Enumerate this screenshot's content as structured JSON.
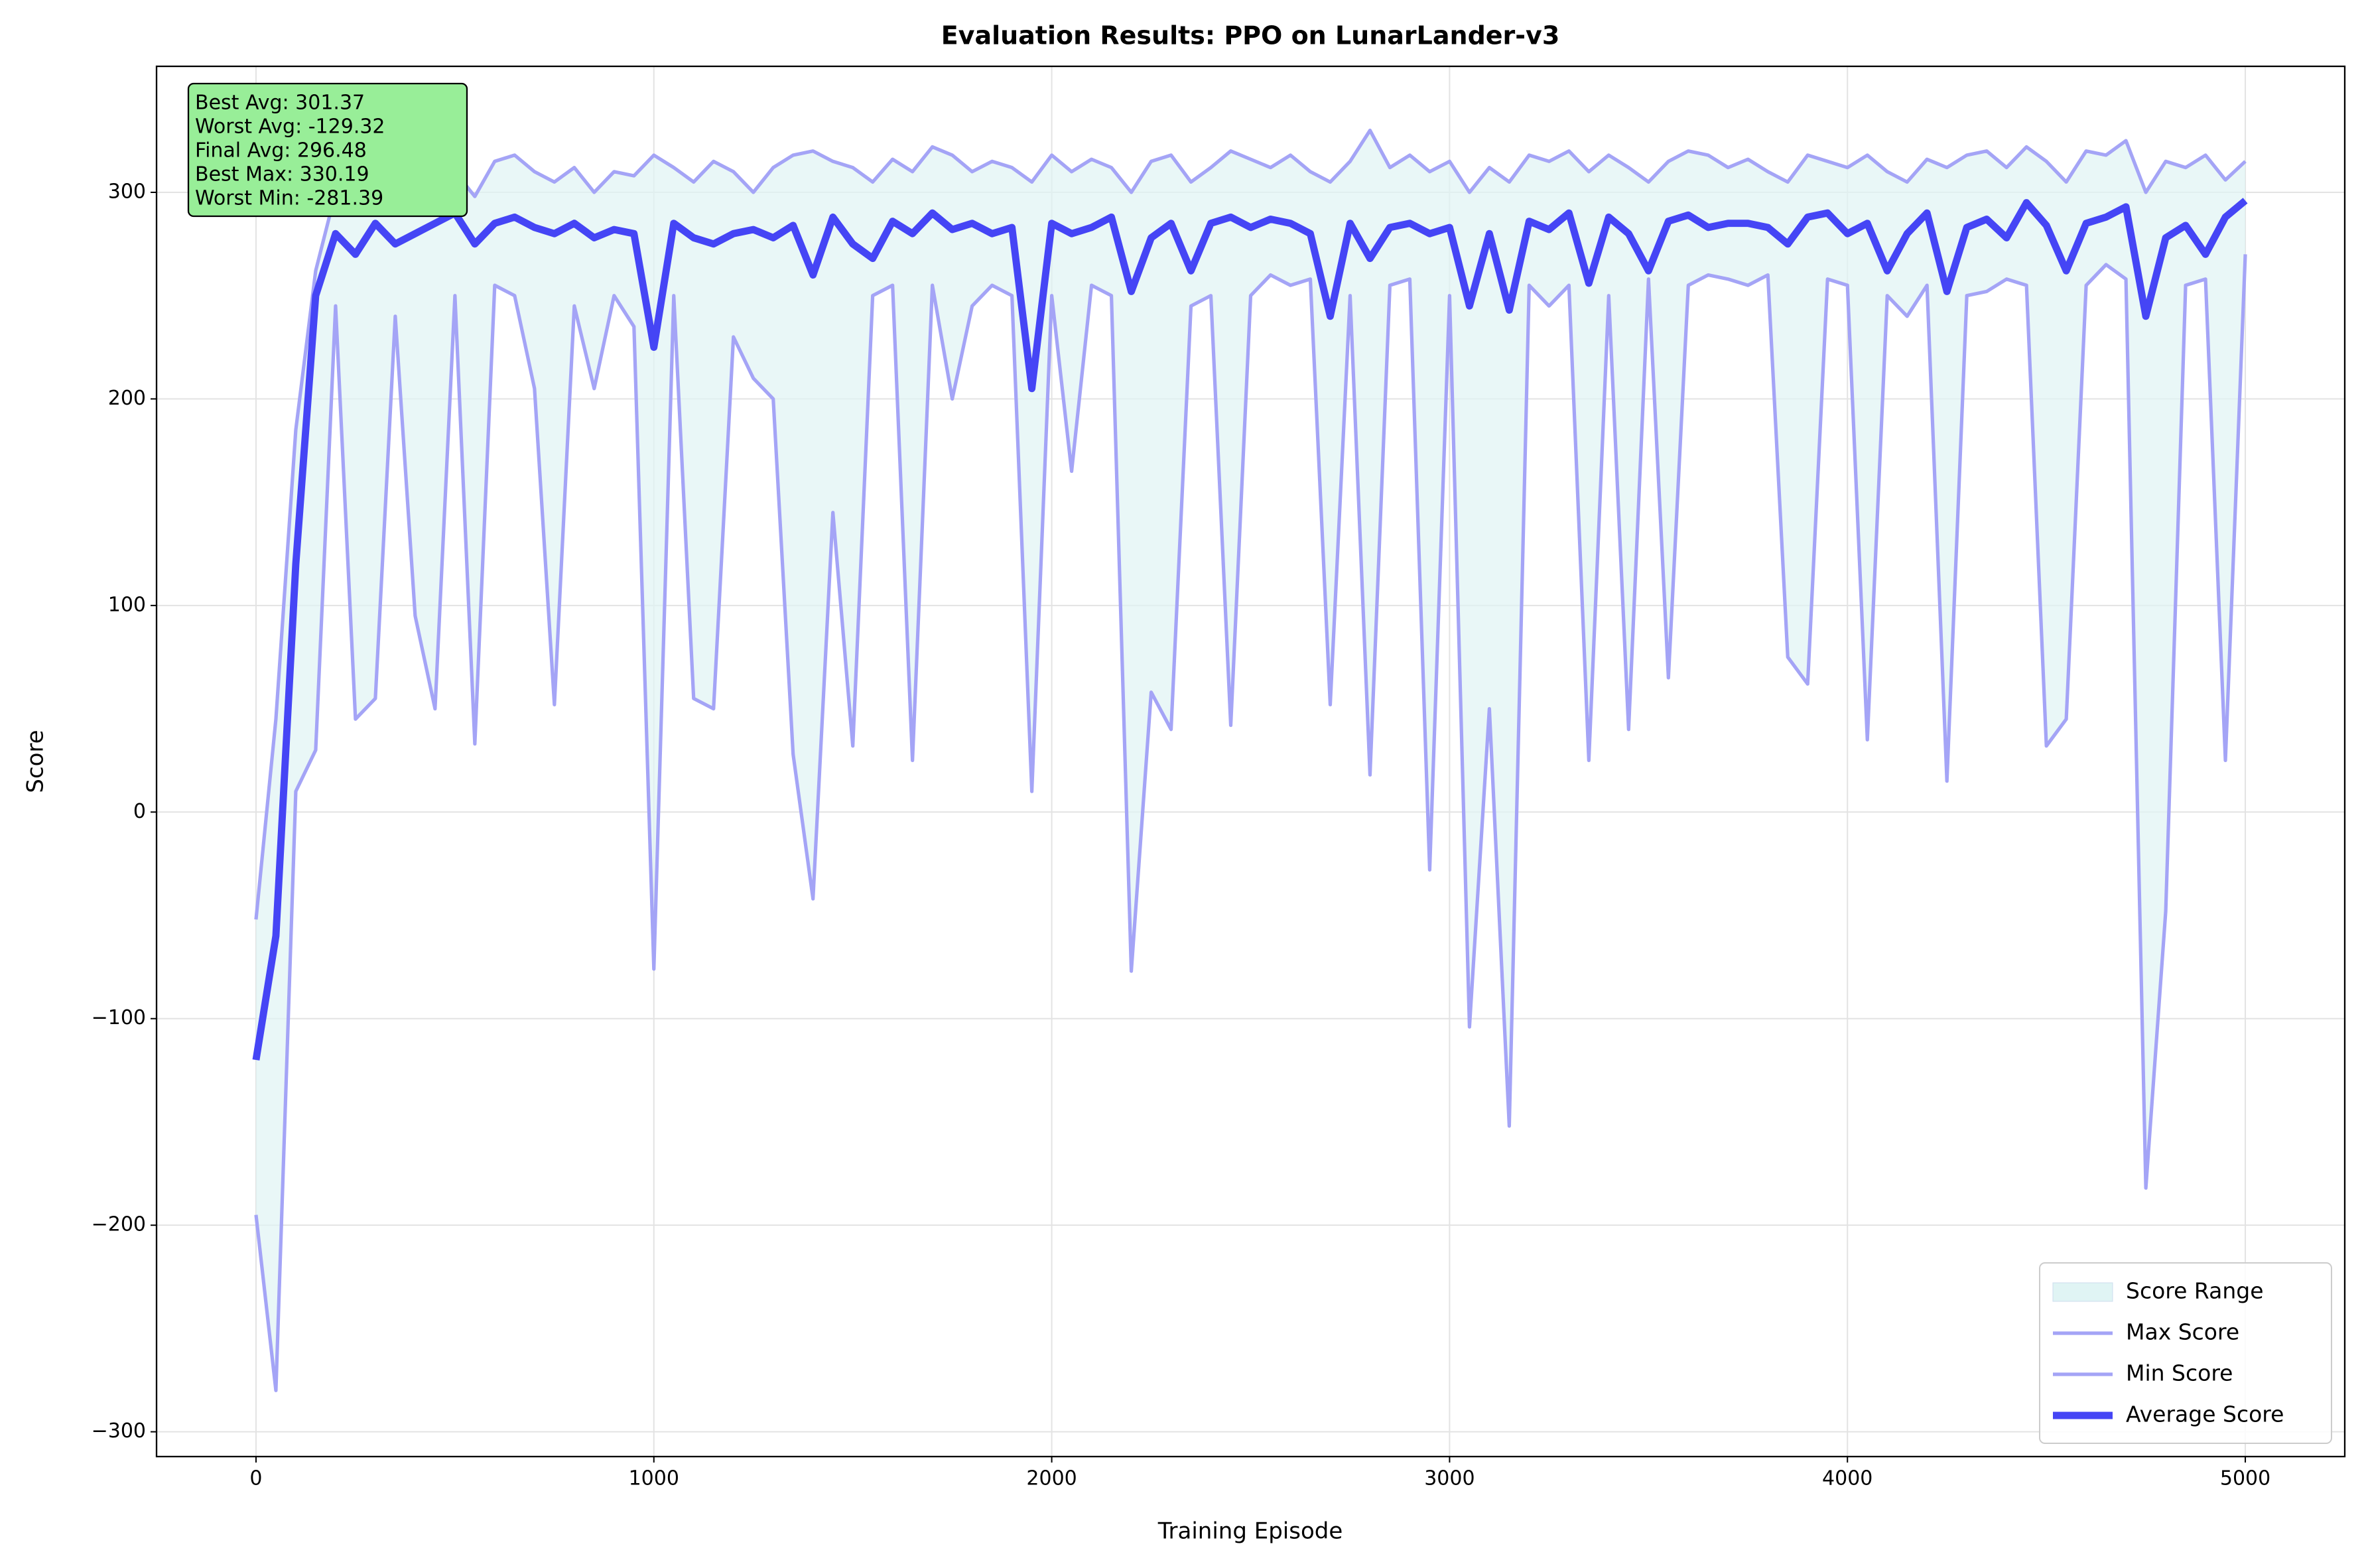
{
  "chart_data": {
    "type": "line",
    "title": "Evaluation Results: PPO on LunarLander-v3",
    "x_label": "Training Episode",
    "y_label": "Score",
    "x": [
      0,
      50,
      100,
      150,
      200,
      250,
      300,
      350,
      400,
      450,
      500,
      550,
      600,
      650,
      700,
      750,
      800,
      850,
      900,
      950,
      1000,
      1050,
      1100,
      1150,
      1200,
      1250,
      1300,
      1350,
      1400,
      1450,
      1500,
      1550,
      1600,
      1650,
      1700,
      1750,
      1800,
      1850,
      1900,
      1950,
      2000,
      2050,
      2100,
      2150,
      2200,
      2250,
      2300,
      2350,
      2400,
      2450,
      2500,
      2550,
      2600,
      2650,
      2700,
      2750,
      2800,
      2850,
      2900,
      2950,
      3000,
      3050,
      3100,
      3150,
      3200,
      3250,
      3300,
      3350,
      3400,
      3450,
      3500,
      3550,
      3600,
      3650,
      3700,
      3750,
      3800,
      3850,
      3900,
      3950,
      4000,
      4050,
      4100,
      4150,
      4200,
      4250,
      4300,
      4350,
      4400,
      4450,
      4500,
      4550,
      4600,
      4650,
      4700,
      4750,
      4800,
      4850,
      4900,
      4950,
      5000
    ],
    "range": {
      "name": "Score Range",
      "color": "#e0f4f4"
    },
    "series": [
      {
        "name": "Max Score",
        "color": "#a4a4f6",
        "width": 2.3,
        "values": [
          -52,
          45,
          185,
          262,
          300,
          310,
          305,
          312,
          300,
          318,
          310,
          298,
          315,
          318,
          310,
          305,
          312,
          300,
          310,
          308,
          318,
          312,
          305,
          315,
          310,
          300,
          312,
          318,
          320,
          315,
          312,
          305,
          316,
          310,
          322,
          318,
          310,
          315,
          312,
          305,
          318,
          310,
          316,
          312,
          300,
          315,
          318,
          305,
          312,
          320,
          316,
          312,
          318,
          310,
          305,
          315,
          330,
          312,
          318,
          310,
          315,
          300,
          312,
          305,
          318,
          315,
          320,
          310,
          318,
          312,
          305,
          315,
          320,
          318,
          312,
          316,
          310,
          305,
          318,
          315,
          312,
          318,
          310,
          305,
          316,
          312,
          318,
          320,
          312,
          322,
          315,
          305,
          320,
          318,
          325,
          300,
          315,
          312,
          318,
          306,
          315
        ]
      },
      {
        "name": "Min Score",
        "color": "#a4a4f6",
        "width": 2.3,
        "values": [
          -195,
          -280,
          10,
          30,
          245,
          45,
          55,
          240,
          95,
          50,
          250,
          33,
          255,
          250,
          205,
          52,
          245,
          205,
          250,
          235,
          -76,
          250,
          55,
          50,
          230,
          210,
          200,
          28,
          -42,
          145,
          32,
          250,
          255,
          25,
          255,
          200,
          245,
          255,
          250,
          10,
          250,
          165,
          255,
          250,
          -77,
          58,
          40,
          245,
          250,
          42,
          250,
          260,
          255,
          258,
          52,
          250,
          18,
          255,
          258,
          -28,
          250,
          -104,
          50,
          -152,
          255,
          245,
          255,
          25,
          250,
          40,
          258,
          65,
          255,
          260,
          258,
          255,
          260,
          75,
          62,
          258,
          255,
          35,
          250,
          240,
          255,
          15,
          250,
          252,
          258,
          255,
          32,
          45,
          255,
          265,
          258,
          -182,
          -48,
          255,
          258,
          25,
          270
        ]
      },
      {
        "name": "Average Score",
        "color": "#4545f5",
        "width": 4.8,
        "values": [
          -120,
          -60,
          120,
          250,
          280,
          270,
          285,
          275,
          280,
          285,
          290,
          275,
          285,
          288,
          283,
          280,
          285,
          278,
          282,
          280,
          225,
          285,
          278,
          275,
          280,
          282,
          278,
          284,
          260,
          288,
          275,
          268,
          286,
          280,
          290,
          282,
          285,
          280,
          283,
          205,
          285,
          280,
          283,
          288,
          252,
          278,
          285,
          262,
          285,
          288,
          283,
          287,
          285,
          280,
          240,
          285,
          268,
          283,
          285,
          280,
          283,
          245,
          280,
          243,
          286,
          282,
          290,
          256,
          288,
          280,
          262,
          286,
          289,
          283,
          285,
          285,
          283,
          275,
          288,
          290,
          280,
          285,
          262,
          280,
          290,
          252,
          283,
          287,
          278,
          295,
          284,
          262,
          285,
          288,
          293,
          240,
          278,
          284,
          270,
          288,
          296
        ]
      }
    ],
    "annotations": [
      "Best Avg: 301.37",
      "Worst Avg: -129.32",
      "Final Avg: 296.48",
      "Best Max: 330.19",
      "Worst Min: -281.39"
    ],
    "annotation_color": "#98ee98",
    "xlim": [
      -250,
      5250
    ],
    "ylim": [
      -312,
      361
    ],
    "xticks": [
      0,
      1000,
      2000,
      3000,
      4000,
      5000
    ],
    "yticks": [
      {
        "value": -300,
        "label": "−300"
      },
      {
        "value": -200,
        "label": "−200"
      },
      {
        "value": -100,
        "label": "−100"
      },
      0,
      100,
      200,
      300
    ],
    "grid": true,
    "legend": "lower right"
  }
}
